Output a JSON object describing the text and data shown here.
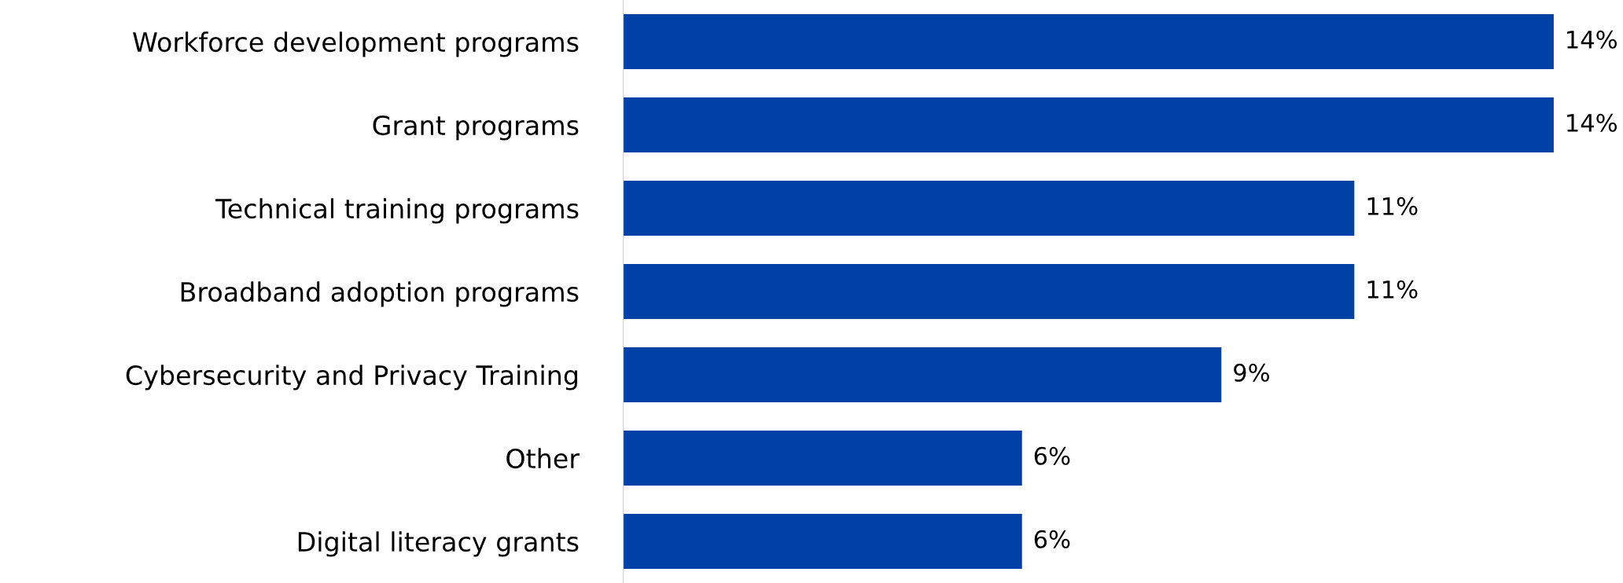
{
  "chart_data": {
    "type": "bar",
    "orientation": "horizontal",
    "categories": [
      "Workforce development programs",
      "Grant programs",
      "Technical training programs",
      "Broadband adoption programs",
      "Cybersecurity and Privacy Training",
      "Other",
      "Digital literacy grants"
    ],
    "values": [
      14,
      14,
      11,
      11,
      9,
      6,
      6
    ],
    "value_labels": [
      "14%",
      "14%",
      "11%",
      "11%",
      "9%",
      "6%",
      "6%"
    ],
    "color": "#0041a8",
    "grid": false,
    "legend": false
  }
}
